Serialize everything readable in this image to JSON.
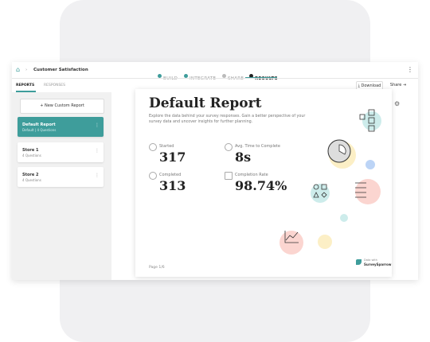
{
  "header": {
    "breadcrumb": "Customer Satisfaction",
    "steps": [
      "BUILD",
      "INTEGRATE",
      "SHARE",
      "RESULTS"
    ]
  },
  "tabs": [
    "REPORTS",
    "RESPONSES"
  ],
  "actions": {
    "download": "Download",
    "share": "Share"
  },
  "sidebar": {
    "new_button": "+ New Custom Report",
    "reports": [
      {
        "name": "Default Report",
        "meta": "Default | 4 Questions"
      },
      {
        "name": "Store 1",
        "meta": "4 Questions"
      },
      {
        "name": "Store 2",
        "meta": "4 Questions"
      }
    ]
  },
  "report": {
    "title": "Default Report",
    "description": "Explore the data behind your survey responses. Gain a better perspective of your survey data and uncover insights for further planning.",
    "stats": [
      {
        "label": "Started",
        "value": 317
      },
      {
        "label": "Avg. Time to Complete",
        "value": "8s"
      },
      {
        "label": "Completed",
        "value": 313
      },
      {
        "label": "Completion Rate",
        "value": "98.74%"
      }
    ],
    "page": "Page 1/6",
    "brand_caption": "Data with",
    "brand": "SurveySparrow"
  }
}
